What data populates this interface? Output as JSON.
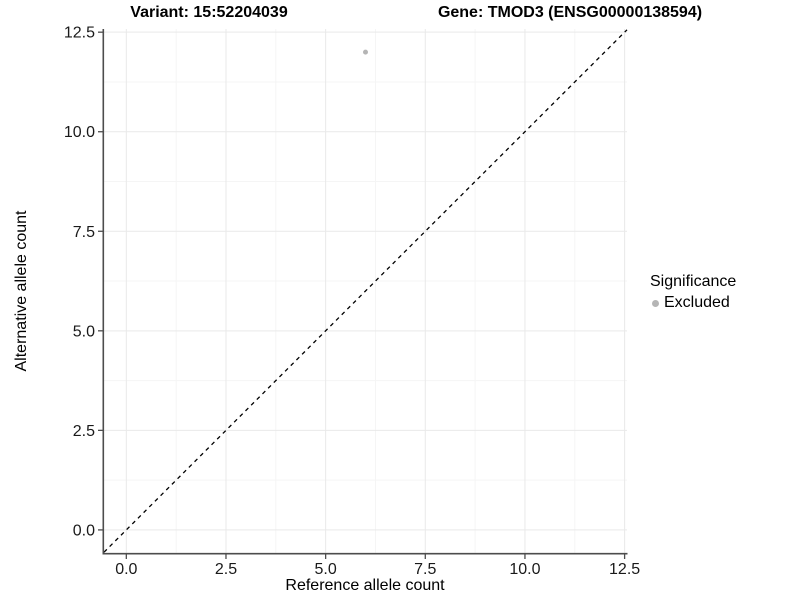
{
  "figure": {
    "title_left": "Variant: 15:52204039",
    "title_right": "Gene: TMOD3 (ENSG00000138594)"
  },
  "legend": {
    "title": "Significance",
    "items": [
      {
        "label": "Excluded",
        "color": "#b5b5b5"
      }
    ]
  },
  "chart_data": {
    "type": "scatter",
    "title": "Variant: 15:52204039 / Gene: TMOD3 (ENSG00000138594)",
    "xlabel": "Reference allele count",
    "ylabel": "Alternative allele count",
    "xlim": [
      -0.56,
      12.56
    ],
    "ylim": [
      -0.58,
      12.58
    ],
    "xticks": [
      0.0,
      2.5,
      5.0,
      7.5,
      10.0,
      12.5
    ],
    "yticks": [
      0.0,
      2.5,
      5.0,
      7.5,
      10.0,
      12.5
    ],
    "tick_label_decimals": 1,
    "grid": true,
    "legend_position": "right",
    "series": [
      {
        "name": "Excluded",
        "color": "#b5b5b5",
        "points": [
          {
            "x": 6,
            "y": 12
          }
        ]
      }
    ],
    "reference_line": {
      "kind": "identity",
      "dashed": true,
      "color": "#000000"
    },
    "style": {
      "grid_major_color": "#e9e9e9",
      "grid_minor_color": "#f5f5f5",
      "axis_line_color": "#4d4d4d",
      "tick_color": "#4d4d4d",
      "tick_label_color": "#1a1a1a",
      "tick_label_size": 16,
      "point_radius": 2.5
    }
  }
}
